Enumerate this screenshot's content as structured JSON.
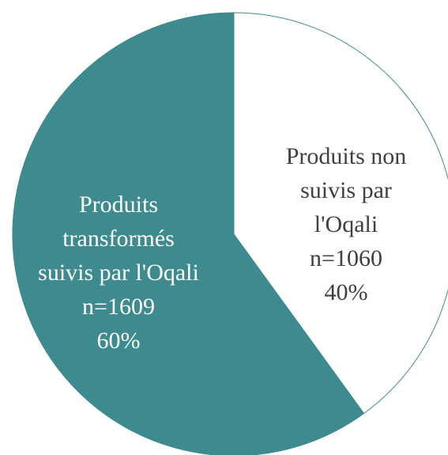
{
  "chart_data": {
    "type": "pie",
    "categories": [
      "Produits non\nsuivis par\nl'Oqali",
      "Produits\ntransformés\nsuivis par l'Oqali"
    ],
    "values": [
      40,
      60
    ],
    "value_labels": [
      "40%",
      "60%"
    ],
    "counts": [
      1060,
      1609
    ],
    "count_labels": [
      "n=1060",
      "n=1609"
    ],
    "colors": [
      "#ffffff",
      "#3d8a8f"
    ],
    "label_colors": [
      "#404040",
      "#ffffff"
    ],
    "start_angle": 0,
    "direction": "clockwise"
  }
}
